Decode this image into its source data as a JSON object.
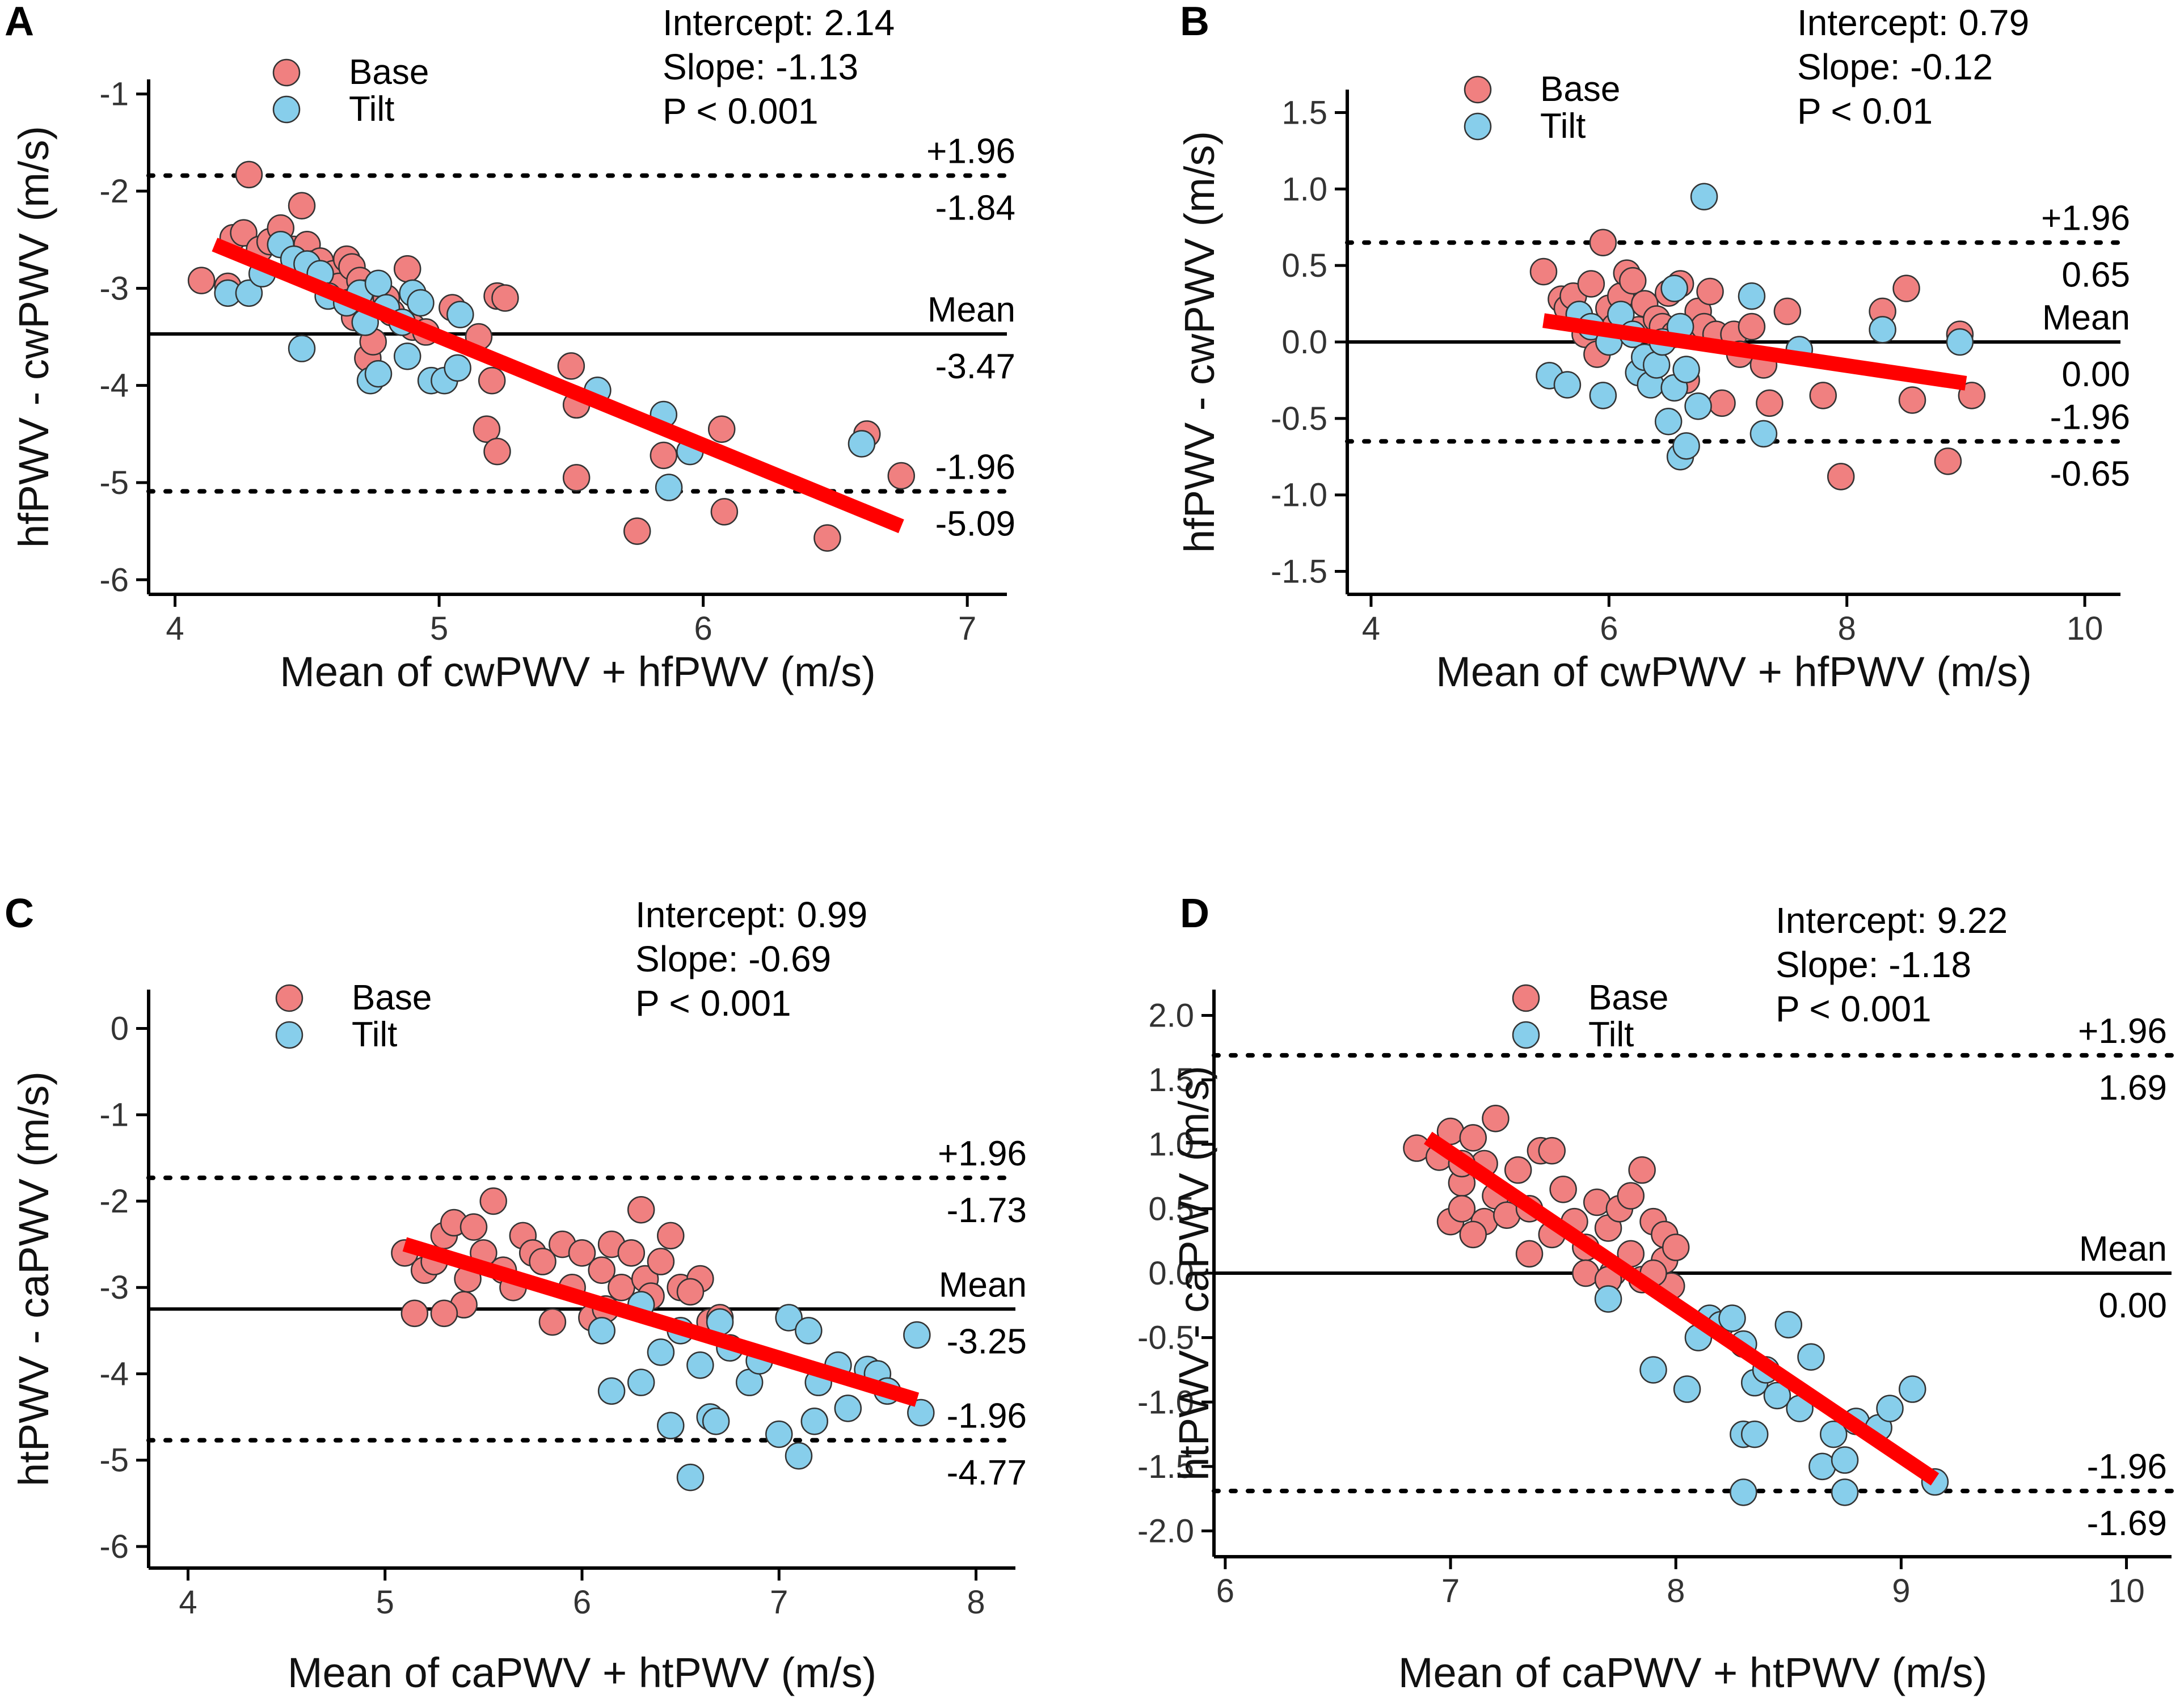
{
  "figure": {
    "colors": {
      "base": "#f08080",
      "tilt": "#87ceeb",
      "regression": "#ff0000",
      "axis": "#000000",
      "marker_edge": "#333333"
    },
    "icons": {
      "base_marker": "circle-marker-icon",
      "tilt_marker": "circle-marker-icon"
    }
  },
  "chart_data": [
    {
      "panel": "A",
      "type": "scatter",
      "xlabel": "Mean of cwPWV + hfPWV (m/s)",
      "ylabel": "hfPWV - cwPWV (m/s)",
      "xlim": [
        3.9,
        7.15
      ],
      "ylim": [
        -6.15,
        -0.85
      ],
      "xticks": [
        4,
        5,
        6,
        7
      ],
      "yticks": [
        -1,
        -2,
        -3,
        -4,
        -5,
        -6
      ],
      "legend": {
        "base": "Base",
        "tilt": "Tilt"
      },
      "stats": {
        "intercept": "Intercept: 2.14",
        "slope": "Slope: -1.13",
        "p": "P < 0.001"
      },
      "mean": -3.47,
      "upper_loa": -1.84,
      "lower_loa": -5.09,
      "annotations": {
        "upper_label": "+1.96",
        "upper_value": "-1.84",
        "mean_label": "Mean",
        "mean_value": "-3.47",
        "lower_label": "-1.96",
        "lower_value": "-5.09"
      },
      "regression": {
        "x": [
          4.15,
          6.75
        ],
        "y": [
          -2.55,
          -5.45
        ]
      },
      "base_points": [
        [
          4.1,
          -2.92
        ],
        [
          4.2,
          -2.98
        ],
        [
          4.28,
          -1.83
        ],
        [
          4.22,
          -2.48
        ],
        [
          4.26,
          -2.43
        ],
        [
          4.32,
          -2.6
        ],
        [
          4.36,
          -2.52
        ],
        [
          4.4,
          -2.38
        ],
        [
          4.45,
          -2.6
        ],
        [
          4.48,
          -2.15
        ],
        [
          4.5,
          -2.55
        ],
        [
          4.52,
          -2.75
        ],
        [
          4.55,
          -2.72
        ],
        [
          4.6,
          -2.85
        ],
        [
          4.62,
          -2.98
        ],
        [
          4.65,
          -2.7
        ],
        [
          4.67,
          -2.78
        ],
        [
          4.7,
          -2.92
        ],
        [
          4.72,
          -3.05
        ],
        [
          4.68,
          -3.3
        ],
        [
          4.73,
          -3.72
        ],
        [
          4.75,
          -3.55
        ],
        [
          4.8,
          -3.1
        ],
        [
          4.82,
          -3.25
        ],
        [
          4.88,
          -2.8
        ],
        [
          4.9,
          -3.4
        ],
        [
          4.95,
          -3.45
        ],
        [
          5.05,
          -3.2
        ],
        [
          5.15,
          -3.5
        ],
        [
          5.22,
          -3.08
        ],
        [
          5.25,
          -3.1
        ],
        [
          5.2,
          -3.95
        ],
        [
          5.18,
          -4.45
        ],
        [
          5.22,
          -4.68
        ],
        [
          5.5,
          -3.8
        ],
        [
          5.52,
          -4.2
        ],
        [
          5.52,
          -4.95
        ],
        [
          5.85,
          -4.72
        ],
        [
          5.75,
          -5.5
        ],
        [
          6.07,
          -4.45
        ],
        [
          6.08,
          -5.3
        ],
        [
          6.47,
          -5.57
        ],
        [
          6.62,
          -4.5
        ],
        [
          6.75,
          -4.93
        ]
      ],
      "tilt_points": [
        [
          4.2,
          -3.05
        ],
        [
          4.28,
          -3.05
        ],
        [
          4.33,
          -2.85
        ],
        [
          4.4,
          -2.55
        ],
        [
          4.45,
          -2.7
        ],
        [
          4.5,
          -2.75
        ],
        [
          4.55,
          -2.85
        ],
        [
          4.58,
          -3.08
        ],
        [
          4.48,
          -3.62
        ],
        [
          4.65,
          -3.15
        ],
        [
          4.7,
          -3.05
        ],
        [
          4.72,
          -3.35
        ],
        [
          4.74,
          -3.95
        ],
        [
          4.77,
          -3.88
        ],
        [
          4.77,
          -2.95
        ],
        [
          4.8,
          -3.2
        ],
        [
          4.86,
          -3.35
        ],
        [
          4.9,
          -3.05
        ],
        [
          4.88,
          -3.7
        ],
        [
          4.93,
          -3.15
        ],
        [
          4.97,
          -3.95
        ],
        [
          5.02,
          -3.95
        ],
        [
          5.08,
          -3.27
        ],
        [
          5.07,
          -3.82
        ],
        [
          5.6,
          -4.05
        ],
        [
          5.85,
          -4.3
        ],
        [
          5.87,
          -5.05
        ],
        [
          5.95,
          -4.68
        ],
        [
          6.6,
          -4.6
        ]
      ]
    },
    {
      "panel": "B",
      "type": "scatter",
      "xlabel": "Mean of cwPWV + hfPWV (m/s)",
      "ylabel": "hfPWV - cwPWV (m/s)",
      "xlim": [
        3.8,
        10.3
      ],
      "ylim": [
        -1.65,
        1.65
      ],
      "xticks": [
        4,
        6,
        8,
        10
      ],
      "yticks": [
        1.5,
        1.0,
        0.5,
        0.0,
        -0.5,
        -1.0,
        -1.5
      ],
      "ytick_labels": [
        "1.5",
        "1.0",
        "0.5",
        "0.0",
        "-0.5",
        "-1.0",
        "-1.5"
      ],
      "legend": {
        "base": "Base",
        "tilt": "Tilt"
      },
      "stats": {
        "intercept": "Intercept: 0.79",
        "slope": "Slope: -0.12",
        "p": "P < 0.01"
      },
      "mean": 0.0,
      "upper_loa": 0.65,
      "lower_loa": -0.65,
      "annotations": {
        "upper_label": "+1.96",
        "upper_value": "0.65",
        "mean_label": "Mean",
        "mean_value": "0.00",
        "lower_label": "-1.96",
        "lower_value": "-0.65"
      },
      "regression": {
        "x": [
          5.45,
          9.0
        ],
        "y": [
          0.14,
          -0.27
        ]
      },
      "base_points": [
        [
          5.45,
          0.46
        ],
        [
          5.6,
          0.28
        ],
        [
          5.65,
          0.22
        ],
        [
          5.7,
          0.3
        ],
        [
          5.75,
          0.18
        ],
        [
          5.8,
          0.05
        ],
        [
          5.85,
          0.38
        ],
        [
          5.95,
          0.65
        ],
        [
          5.9,
          -0.08
        ],
        [
          6.0,
          0.22
        ],
        [
          6.1,
          0.3
        ],
        [
          6.15,
          0.45
        ],
        [
          6.2,
          0.4
        ],
        [
          6.25,
          0.08
        ],
        [
          6.3,
          0.25
        ],
        [
          6.4,
          0.15
        ],
        [
          6.45,
          0.1
        ],
        [
          6.5,
          0.32
        ],
        [
          6.55,
          0.05
        ],
        [
          6.6,
          0.38
        ],
        [
          6.65,
          -0.25
        ],
        [
          6.7,
          0.05
        ],
        [
          6.75,
          0.2
        ],
        [
          6.8,
          0.1
        ],
        [
          6.85,
          0.33
        ],
        [
          6.9,
          0.05
        ],
        [
          6.95,
          -0.4
        ],
        [
          7.05,
          0.05
        ],
        [
          7.1,
          -0.08
        ],
        [
          7.3,
          -0.15
        ],
        [
          7.35,
          -0.4
        ],
        [
          7.5,
          0.2
        ],
        [
          7.8,
          -0.35
        ],
        [
          7.95,
          -0.88
        ],
        [
          8.3,
          0.2
        ],
        [
          8.5,
          0.35
        ],
        [
          8.55,
          -0.38
        ],
        [
          8.85,
          -0.78
        ],
        [
          8.95,
          0.05
        ],
        [
          9.05,
          -0.35
        ],
        [
          6.05,
          0.1
        ],
        [
          6.35,
          -0.15
        ],
        [
          7.2,
          0.1
        ]
      ],
      "tilt_points": [
        [
          5.5,
          -0.22
        ],
        [
          5.65,
          -0.28
        ],
        [
          5.75,
          0.18
        ],
        [
          5.85,
          0.1
        ],
        [
          5.95,
          -0.35
        ],
        [
          6.0,
          0.0
        ],
        [
          6.1,
          0.18
        ],
        [
          6.2,
          0.05
        ],
        [
          6.25,
          -0.2
        ],
        [
          6.3,
          -0.1
        ],
        [
          6.35,
          -0.28
        ],
        [
          6.4,
          -0.15
        ],
        [
          6.45,
          0.0
        ],
        [
          6.5,
          -0.52
        ],
        [
          6.55,
          -0.3
        ],
        [
          6.6,
          -0.75
        ],
        [
          6.65,
          -0.68
        ],
        [
          6.6,
          0.1
        ],
        [
          6.65,
          -0.18
        ],
        [
          6.75,
          -0.42
        ],
        [
          6.8,
          0.95
        ],
        [
          6.55,
          0.35
        ],
        [
          7.3,
          -0.6
        ],
        [
          7.2,
          0.3
        ],
        [
          7.6,
          -0.05
        ],
        [
          8.3,
          0.08
        ],
        [
          8.95,
          0.0
        ]
      ]
    },
    {
      "panel": "C",
      "type": "scatter",
      "xlabel": "Mean of caPWV + htPWV (m/s)",
      "ylabel": "htPWV - caPWV (m/s)",
      "xlim": [
        3.8,
        8.2
      ],
      "ylim": [
        -6.25,
        0.45
      ],
      "xticks": [
        4,
        5,
        6,
        7,
        8
      ],
      "yticks": [
        0,
        -1,
        -2,
        -3,
        -4,
        -5,
        -6
      ],
      "legend": {
        "base": "Base",
        "tilt": "Tilt"
      },
      "stats": {
        "intercept": "Intercept: 0.99",
        "slope": "Slope: -0.69",
        "p": "P < 0.001"
      },
      "mean": -3.25,
      "upper_loa": -1.73,
      "lower_loa": -4.77,
      "annotations": {
        "upper_label": "+1.96",
        "upper_value": "-1.73",
        "mean_label": "Mean",
        "mean_value": "-3.25",
        "lower_label": "-1.96",
        "lower_value": "-4.77"
      },
      "regression": {
        "x": [
          5.1,
          7.7
        ],
        "y": [
          -2.5,
          -4.3
        ]
      },
      "base_points": [
        [
          5.1,
          -2.6
        ],
        [
          5.15,
          -3.3
        ],
        [
          5.2,
          -2.8
        ],
        [
          5.25,
          -2.7
        ],
        [
          5.3,
          -2.4
        ],
        [
          5.35,
          -2.25
        ],
        [
          5.4,
          -3.2
        ],
        [
          5.42,
          -2.9
        ],
        [
          5.45,
          -2.3
        ],
        [
          5.5,
          -2.6
        ],
        [
          5.55,
          -2.0
        ],
        [
          5.6,
          -2.8
        ],
        [
          5.65,
          -3.0
        ],
        [
          5.7,
          -2.4
        ],
        [
          5.75,
          -2.6
        ],
        [
          5.8,
          -2.7
        ],
        [
          5.85,
          -3.4
        ],
        [
          5.9,
          -2.5
        ],
        [
          5.95,
          -3.0
        ],
        [
          6.0,
          -2.6
        ],
        [
          6.05,
          -3.35
        ],
        [
          6.1,
          -2.8
        ],
        [
          6.15,
          -2.5
        ],
        [
          6.2,
          -3.0
        ],
        [
          6.25,
          -2.6
        ],
        [
          6.3,
          -2.1
        ],
        [
          6.32,
          -2.9
        ],
        [
          6.35,
          -3.1
        ],
        [
          6.4,
          -2.7
        ],
        [
          6.45,
          -2.4
        ],
        [
          6.5,
          -3.0
        ],
        [
          6.6,
          -2.9
        ],
        [
          6.65,
          -3.4
        ],
        [
          6.7,
          -3.35
        ],
        [
          5.3,
          -3.3
        ],
        [
          6.12,
          -3.25
        ],
        [
          6.55,
          -3.05
        ]
      ],
      "tilt_points": [
        [
          6.1,
          -3.5
        ],
        [
          6.15,
          -4.2
        ],
        [
          6.3,
          -4.1
        ],
        [
          6.4,
          -3.75
        ],
        [
          6.45,
          -4.6
        ],
        [
          6.5,
          -3.5
        ],
        [
          6.55,
          -5.2
        ],
        [
          6.6,
          -3.9
        ],
        [
          6.65,
          -4.5
        ],
        [
          6.68,
          -4.55
        ],
        [
          6.7,
          -3.4
        ],
        [
          6.75,
          -3.7
        ],
        [
          6.85,
          -4.1
        ],
        [
          6.9,
          -3.85
        ],
        [
          7.0,
          -4.7
        ],
        [
          7.05,
          -3.35
        ],
        [
          7.1,
          -4.95
        ],
        [
          7.15,
          -3.5
        ],
        [
          7.18,
          -4.55
        ],
        [
          7.2,
          -4.1
        ],
        [
          7.3,
          -3.9
        ],
        [
          7.35,
          -4.4
        ],
        [
          7.45,
          -3.95
        ],
        [
          7.5,
          -4.0
        ],
        [
          7.55,
          -4.2
        ],
        [
          7.7,
          -3.55
        ],
        [
          7.72,
          -4.45
        ],
        [
          6.3,
          -3.2
        ]
      ]
    },
    {
      "panel": "D",
      "type": "scatter",
      "xlabel": "Mean of caPWV + htPWV (m/s)",
      "ylabel": "htPWV - caPWV (m/s)",
      "xlim": [
        5.95,
        10.2
      ],
      "ylim": [
        -2.2,
        2.2
      ],
      "xticks": [
        6,
        7,
        8,
        9,
        10
      ],
      "yticks": [
        2.0,
        1.5,
        1.0,
        0.5,
        0.0,
        -0.5,
        -1.0,
        -1.5,
        -2.0
      ],
      "ytick_labels": [
        "2.0",
        "1.5",
        "1.0",
        "0.5",
        "0.0",
        "-0.5",
        "-1.0",
        "-1.5",
        "-2.0"
      ],
      "legend": {
        "base": "Base",
        "tilt": "Tilt"
      },
      "stats": {
        "intercept": "Intercept: 9.22",
        "slope": "Slope: -1.18",
        "p": "P < 0.001"
      },
      "mean": 0.0,
      "upper_loa": 1.69,
      "lower_loa": -1.69,
      "annotations": {
        "upper_label": "+1.96",
        "upper_value": "1.69",
        "mean_label": "Mean",
        "mean_value": "0.00",
        "lower_label": "-1.96",
        "lower_value": "-1.69"
      },
      "regression": {
        "x": [
          6.9,
          9.15
        ],
        "y": [
          1.05,
          -1.6
        ]
      },
      "base_points": [
        [
          6.85,
          0.97
        ],
        [
          6.95,
          0.9
        ],
        [
          7.0,
          0.4
        ],
        [
          7.0,
          1.1
        ],
        [
          7.05,
          0.7
        ],
        [
          7.05,
          0.5
        ],
        [
          7.1,
          1.05
        ],
        [
          7.15,
          0.85
        ],
        [
          7.15,
          0.4
        ],
        [
          7.2,
          0.6
        ],
        [
          7.2,
          1.2
        ],
        [
          7.25,
          0.45
        ],
        [
          7.3,
          0.8
        ],
        [
          7.35,
          0.5
        ],
        [
          7.4,
          0.95
        ],
        [
          7.45,
          0.3
        ],
        [
          7.5,
          0.65
        ],
        [
          7.55,
          0.4
        ],
        [
          7.6,
          0.2
        ],
        [
          7.65,
          0.55
        ],
        [
          7.7,
          0.35
        ],
        [
          7.72,
          0.0
        ],
        [
          7.75,
          0.5
        ],
        [
          7.8,
          0.15
        ],
        [
          7.85,
          0.8
        ],
        [
          7.9,
          0.4
        ],
        [
          7.95,
          0.1
        ],
        [
          7.95,
          0.3
        ],
        [
          7.98,
          -0.1
        ],
        [
          8.0,
          0.2
        ],
        [
          7.6,
          0.0
        ],
        [
          7.7,
          -0.05
        ],
        [
          7.85,
          -0.05
        ],
        [
          7.05,
          0.85
        ],
        [
          7.45,
          0.95
        ],
        [
          7.1,
          0.3
        ],
        [
          7.35,
          0.15
        ],
        [
          7.8,
          0.6
        ],
        [
          7.9,
          0.0
        ]
      ],
      "tilt_points": [
        [
          7.7,
          -0.2
        ],
        [
          7.9,
          -0.75
        ],
        [
          8.05,
          -0.9
        ],
        [
          8.1,
          -0.5
        ],
        [
          8.15,
          -0.35
        ],
        [
          8.2,
          -0.4
        ],
        [
          8.25,
          -0.35
        ],
        [
          8.3,
          -0.55
        ],
        [
          8.3,
          -1.25
        ],
        [
          8.3,
          -1.7
        ],
        [
          8.35,
          -0.85
        ],
        [
          8.35,
          -1.25
        ],
        [
          8.4,
          -0.75
        ],
        [
          8.45,
          -0.95
        ],
        [
          8.5,
          -0.4
        ],
        [
          8.55,
          -1.05
        ],
        [
          8.6,
          -0.65
        ],
        [
          8.65,
          -1.5
        ],
        [
          8.7,
          -1.25
        ],
        [
          8.75,
          -1.7
        ],
        [
          8.75,
          -1.45
        ],
        [
          8.8,
          -1.15
        ],
        [
          8.9,
          -1.2
        ],
        [
          8.95,
          -1.05
        ],
        [
          9.05,
          -0.9
        ],
        [
          9.15,
          -1.62
        ]
      ]
    }
  ]
}
